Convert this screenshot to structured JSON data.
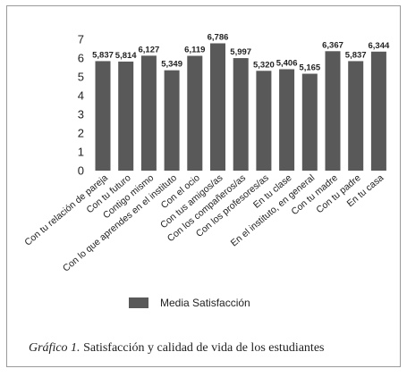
{
  "chart_data": {
    "type": "bar",
    "categories": [
      "Con tu relación de pareja",
      "Con tu futuro",
      "Contigo mismo",
      "Con lo que aprendes en el instituto",
      "Con el ocio",
      "Con tus amigos/as",
      "Con los compañeros/as",
      "Con los profesores/as",
      "En  tu clase",
      "En el instituto, en general",
      "Con tu madre",
      "Con tu padre",
      "En tu casa"
    ],
    "series": [
      {
        "name": "Media Satisfacción",
        "values": [
          5.837,
          5.814,
          6.127,
          5.349,
          6.119,
          6.786,
          5.997,
          5.32,
          5.406,
          5.165,
          6.367,
          5.837,
          6.344
        ]
      }
    ],
    "data_labels": [
      "5,837",
      "5,814",
      "6,127",
      "5,349",
      "6,119",
      "6,786",
      "5,997",
      "5,320",
      "5,406",
      "5,165",
      "6,367",
      "5,837",
      "6,344"
    ],
    "yticks": [
      "0",
      "1",
      "2",
      "3",
      "4",
      "5",
      "6",
      "7"
    ],
    "ylim": [
      0,
      7
    ],
    "grid": false,
    "legend_position": "bottom-center",
    "bar_color": "#595959"
  },
  "caption": {
    "label": "Gráfico 1.",
    "text": "Satisfacción y calidad de vida de los estudiantes"
  }
}
